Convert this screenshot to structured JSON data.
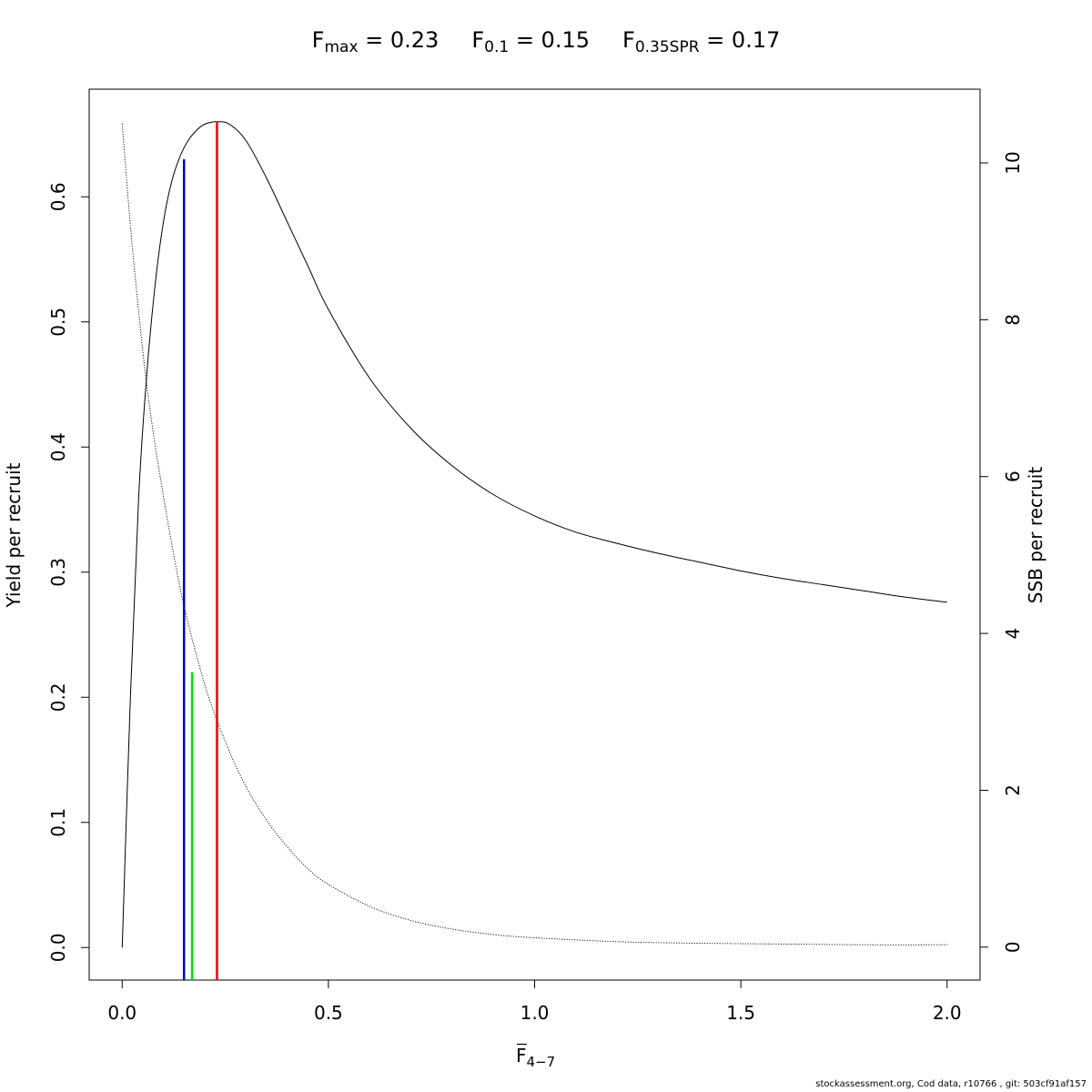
{
  "title": {
    "fmax": {
      "symbol": "F",
      "sub": "max",
      "rest": " = 0.23"
    },
    "f01": {
      "symbol": "F",
      "sub": "0.1",
      "rest": " = 0.15"
    },
    "fspr": {
      "symbol": "F",
      "sub": "0.35SPR",
      "rest": " = 0.17"
    }
  },
  "footer": "stockassessment.org, Cod  data, r10766 , git: 503cf91af157",
  "chart_data": {
    "type": "line",
    "xlabel_main": "F",
    "xlabel_sub": "4−7",
    "ylabel_left": "Yield per recruit",
    "ylabel_right": "SSB per recruit",
    "xlim": [
      -0.08,
      2.08
    ],
    "ylim_left": [
      -0.026,
      0.686
    ],
    "ylim_right": [
      -0.42,
      10.94
    ],
    "x_ticks": [
      "0.0",
      "0.5",
      "1.0",
      "1.5",
      "2.0"
    ],
    "y_left_ticks": [
      "0.0",
      "0.1",
      "0.2",
      "0.3",
      "0.4",
      "0.5",
      "0.6"
    ],
    "y_right_ticks": [
      "0",
      "2",
      "4",
      "6",
      "8",
      "10"
    ],
    "grid": false,
    "series": [
      {
        "axis": "left",
        "style": "solid",
        "color": "#000000",
        "x": [
          0,
          0.02,
          0.04,
          0.06,
          0.08,
          0.1,
          0.12,
          0.14,
          0.16,
          0.18,
          0.2,
          0.23,
          0.26,
          0.3,
          0.35,
          0.4,
          0.45,
          0.5,
          0.6,
          0.7,
          0.8,
          0.9,
          1.0,
          1.1,
          1.2,
          1.3,
          1.4,
          1.5,
          1.6,
          1.7,
          1.8,
          1.9,
          2.0
        ],
        "values": [
          0.0,
          0.2,
          0.36,
          0.46,
          0.53,
          0.58,
          0.612,
          0.632,
          0.645,
          0.653,
          0.658,
          0.66,
          0.658,
          0.645,
          0.615,
          0.58,
          0.545,
          0.51,
          0.455,
          0.415,
          0.385,
          0.362,
          0.345,
          0.332,
          0.323,
          0.315,
          0.308,
          0.301,
          0.295,
          0.29,
          0.285,
          0.28,
          0.276
        ]
      },
      {
        "axis": "right",
        "style": "dotted",
        "color": "#000000",
        "x": [
          0,
          0.02,
          0.04,
          0.06,
          0.08,
          0.1,
          0.12,
          0.15,
          0.2,
          0.25,
          0.3,
          0.35,
          0.4,
          0.45,
          0.5,
          0.6,
          0.7,
          0.8,
          0.9,
          1.0,
          1.2,
          1.4,
          1.6,
          1.8,
          2.0
        ],
        "values": [
          10.5,
          9.2,
          8.1,
          7.15,
          6.4,
          5.75,
          5.15,
          4.35,
          3.35,
          2.62,
          2.05,
          1.62,
          1.28,
          1.0,
          0.8,
          0.52,
          0.34,
          0.23,
          0.16,
          0.12,
          0.07,
          0.05,
          0.04,
          0.03,
          0.03
        ]
      }
    ],
    "reference_lines": [
      {
        "name": "F0.1",
        "x": 0.15,
        "ytop": 0.63,
        "color": "#0000cc"
      },
      {
        "name": "F0.35SPR",
        "x": 0.17,
        "ytop": 0.22,
        "color": "#00dd00"
      },
      {
        "name": "Fmax",
        "x": 0.23,
        "ytop": 0.66,
        "color": "#ee0000"
      }
    ]
  }
}
